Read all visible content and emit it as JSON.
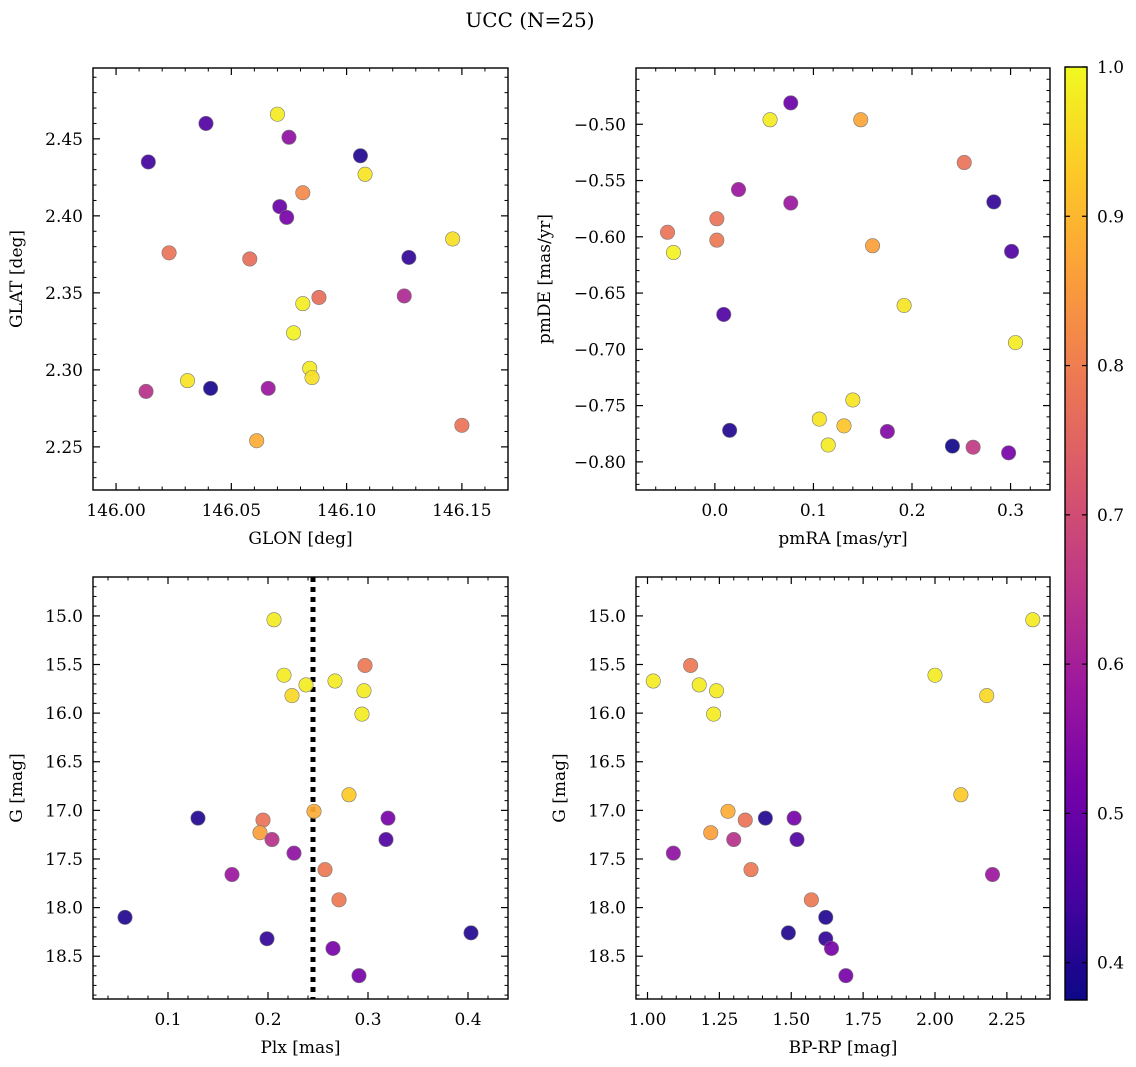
{
  "figure": {
    "title": "UCC (N=25)"
  },
  "colorbar": {
    "range": [
      0.375,
      1.0
    ],
    "ticks": [
      0.4,
      0.5,
      0.6,
      0.7,
      0.8,
      0.9,
      1.0
    ],
    "tick_labels": [
      "0.4",
      "0.5",
      "0.6",
      "0.7",
      "0.8",
      "0.9",
      "1.0"
    ],
    "colormap": "plasma",
    "colors": [
      "#0d0887",
      "#46039f",
      "#7201a8",
      "#9c179e",
      "#bd3786",
      "#d8576b",
      "#ed7953",
      "#fb9f3a",
      "#fdca26",
      "#f0f921"
    ]
  },
  "chart_data": [
    {
      "type": "scatter",
      "panel": "top-left",
      "xlabel": "GLON [deg]",
      "ylabel": "GLAT [deg]",
      "xlim": [
        145.99,
        146.17
      ],
      "ylim": [
        2.222,
        2.496
      ],
      "x_ticks": [
        146.0,
        146.05,
        146.1,
        146.15
      ],
      "x_tick_labels": [
        "146.00",
        "146.05",
        "146.10",
        "146.15"
      ],
      "y_ticks": [
        2.25,
        2.3,
        2.35,
        2.4,
        2.45
      ],
      "y_tick_labels": [
        "2.25",
        "2.30",
        "2.35",
        "2.40",
        "2.45"
      ],
      "invert_y": false,
      "points": [
        {
          "x": 146.07,
          "y": 2.466,
          "c": 0.98
        },
        {
          "x": 146.039,
          "y": 2.46,
          "c": 0.46
        },
        {
          "x": 146.075,
          "y": 2.451,
          "c": 0.56
        },
        {
          "x": 146.014,
          "y": 2.435,
          "c": 0.44
        },
        {
          "x": 146.106,
          "y": 2.439,
          "c": 0.4
        },
        {
          "x": 146.108,
          "y": 2.427,
          "c": 0.97
        },
        {
          "x": 146.081,
          "y": 2.415,
          "c": 0.82
        },
        {
          "x": 146.071,
          "y": 2.406,
          "c": 0.5
        },
        {
          "x": 146.074,
          "y": 2.399,
          "c": 0.52
        },
        {
          "x": 146.146,
          "y": 2.385,
          "c": 0.96
        },
        {
          "x": 146.023,
          "y": 2.376,
          "c": 0.78
        },
        {
          "x": 146.058,
          "y": 2.372,
          "c": 0.77
        },
        {
          "x": 146.127,
          "y": 2.373,
          "c": 0.42
        },
        {
          "x": 146.125,
          "y": 2.348,
          "c": 0.62
        },
        {
          "x": 146.088,
          "y": 2.347,
          "c": 0.77
        },
        {
          "x": 146.081,
          "y": 2.343,
          "c": 0.98
        },
        {
          "x": 146.077,
          "y": 2.324,
          "c": 0.99
        },
        {
          "x": 146.084,
          "y": 2.301,
          "c": 0.98
        },
        {
          "x": 146.085,
          "y": 2.295,
          "c": 0.96
        },
        {
          "x": 146.031,
          "y": 2.293,
          "c": 0.97
        },
        {
          "x": 146.041,
          "y": 2.288,
          "c": 0.39
        },
        {
          "x": 146.066,
          "y": 2.288,
          "c": 0.58
        },
        {
          "x": 146.013,
          "y": 2.286,
          "c": 0.64
        },
        {
          "x": 146.15,
          "y": 2.264,
          "c": 0.78
        },
        {
          "x": 146.061,
          "y": 2.254,
          "c": 0.88
        }
      ]
    },
    {
      "type": "scatter",
      "panel": "top-right",
      "xlabel": "pmRA [mas/yr]",
      "ylabel": "pmDE [mas/yr]",
      "xlim": [
        -0.08,
        0.34
      ],
      "ylim": [
        -0.825,
        -0.45
      ],
      "x_ticks": [
        0.0,
        0.1,
        0.2,
        0.3
      ],
      "x_tick_labels": [
        "0.0",
        "0.1",
        "0.2",
        "0.3"
      ],
      "y_ticks": [
        -0.8,
        -0.75,
        -0.7,
        -0.65,
        -0.6,
        -0.55,
        -0.5
      ],
      "y_tick_labels": [
        "−0.80",
        "−0.75",
        "−0.70",
        "−0.65",
        "−0.60",
        "−0.55",
        "−0.50"
      ],
      "invert_y": false,
      "points": [
        {
          "x": 0.077,
          "y": -0.481,
          "c": 0.5
        },
        {
          "x": 0.056,
          "y": -0.496,
          "c": 0.98
        },
        {
          "x": 0.148,
          "y": -0.496,
          "c": 0.87
        },
        {
          "x": 0.253,
          "y": -0.534,
          "c": 0.78
        },
        {
          "x": 0.024,
          "y": -0.558,
          "c": 0.58
        },
        {
          "x": 0.283,
          "y": -0.569,
          "c": 0.42
        },
        {
          "x": 0.077,
          "y": -0.57,
          "c": 0.58
        },
        {
          "x": 0.002,
          "y": -0.584,
          "c": 0.78
        },
        {
          "x": -0.048,
          "y": -0.596,
          "c": 0.78
        },
        {
          "x": 0.002,
          "y": -0.603,
          "c": 0.79
        },
        {
          "x": 0.16,
          "y": -0.608,
          "c": 0.86
        },
        {
          "x": -0.042,
          "y": -0.614,
          "c": 0.99
        },
        {
          "x": 0.301,
          "y": -0.613,
          "c": 0.46
        },
        {
          "x": 0.192,
          "y": -0.661,
          "c": 0.97
        },
        {
          "x": 0.009,
          "y": -0.669,
          "c": 0.46
        },
        {
          "x": 0.305,
          "y": -0.694,
          "c": 0.98
        },
        {
          "x": 0.14,
          "y": -0.745,
          "c": 0.97
        },
        {
          "x": 0.106,
          "y": -0.762,
          "c": 0.97
        },
        {
          "x": 0.131,
          "y": -0.768,
          "c": 0.92
        },
        {
          "x": 0.015,
          "y": -0.772,
          "c": 0.4
        },
        {
          "x": 0.175,
          "y": -0.773,
          "c": 0.54
        },
        {
          "x": 0.115,
          "y": -0.785,
          "c": 0.98
        },
        {
          "x": 0.241,
          "y": -0.786,
          "c": 0.38
        },
        {
          "x": 0.262,
          "y": -0.787,
          "c": 0.66
        },
        {
          "x": 0.298,
          "y": -0.792,
          "c": 0.52
        }
      ]
    },
    {
      "type": "scatter",
      "panel": "bottom-left",
      "xlabel": "Plx [mas]",
      "ylabel": "G [mag]",
      "xlim": [
        0.025,
        0.44
      ],
      "ylim": [
        14.6,
        18.94
      ],
      "x_ticks": [
        0.1,
        0.2,
        0.3,
        0.4
      ],
      "x_tick_labels": [
        "0.1",
        "0.2",
        "0.3",
        "0.4"
      ],
      "y_ticks": [
        15.0,
        15.5,
        16.0,
        16.5,
        17.0,
        17.5,
        18.0,
        18.5
      ],
      "y_tick_labels": [
        "15.0",
        "15.5",
        "16.0",
        "16.5",
        "17.0",
        "17.5",
        "18.0",
        "18.5"
      ],
      "invert_y": true,
      "vline": 0.245,
      "points": [
        {
          "x": 0.206,
          "y": 15.04,
          "c": 0.98
        },
        {
          "x": 0.297,
          "y": 15.51,
          "c": 0.79
        },
        {
          "x": 0.216,
          "y": 15.61,
          "c": 0.98
        },
        {
          "x": 0.267,
          "y": 15.67,
          "c": 0.98
        },
        {
          "x": 0.238,
          "y": 15.71,
          "c": 0.98
        },
        {
          "x": 0.296,
          "y": 15.77,
          "c": 0.98
        },
        {
          "x": 0.224,
          "y": 15.82,
          "c": 0.95
        },
        {
          "x": 0.294,
          "y": 16.01,
          "c": 0.98
        },
        {
          "x": 0.281,
          "y": 16.84,
          "c": 0.93
        },
        {
          "x": 0.246,
          "y": 17.01,
          "c": 0.88
        },
        {
          "x": 0.13,
          "y": 17.08,
          "c": 0.4
        },
        {
          "x": 0.32,
          "y": 17.08,
          "c": 0.52
        },
        {
          "x": 0.195,
          "y": 17.1,
          "c": 0.78
        },
        {
          "x": 0.192,
          "y": 17.23,
          "c": 0.86
        },
        {
          "x": 0.204,
          "y": 17.3,
          "c": 0.64
        },
        {
          "x": 0.318,
          "y": 17.3,
          "c": 0.46
        },
        {
          "x": 0.226,
          "y": 17.44,
          "c": 0.56
        },
        {
          "x": 0.257,
          "y": 17.61,
          "c": 0.79
        },
        {
          "x": 0.164,
          "y": 17.66,
          "c": 0.58
        },
        {
          "x": 0.271,
          "y": 17.92,
          "c": 0.79
        },
        {
          "x": 0.057,
          "y": 18.1,
          "c": 0.4
        },
        {
          "x": 0.403,
          "y": 18.26,
          "c": 0.4
        },
        {
          "x": 0.199,
          "y": 18.32,
          "c": 0.42
        },
        {
          "x": 0.265,
          "y": 18.42,
          "c": 0.52
        },
        {
          "x": 0.291,
          "y": 18.7,
          "c": 0.52
        }
      ]
    },
    {
      "type": "scatter",
      "panel": "bottom-right",
      "xlabel": "BP-RP [mag]",
      "ylabel": "G [mag]",
      "xlim": [
        0.96,
        2.4
      ],
      "ylim": [
        14.6,
        18.94
      ],
      "x_ticks": [
        1.0,
        1.25,
        1.5,
        1.75,
        2.0,
        2.25
      ],
      "x_tick_labels": [
        "1.00",
        "1.25",
        "1.50",
        "1.75",
        "2.00",
        "2.25"
      ],
      "y_ticks": [
        15.0,
        15.5,
        16.0,
        16.5,
        17.0,
        17.5,
        18.0,
        18.5
      ],
      "y_tick_labels": [
        "15.0",
        "15.5",
        "16.0",
        "16.5",
        "17.0",
        "17.5",
        "18.0",
        "18.5"
      ],
      "invert_y": true,
      "points": [
        {
          "x": 2.34,
          "y": 15.04,
          "c": 0.98
        },
        {
          "x": 1.15,
          "y": 15.51,
          "c": 0.79
        },
        {
          "x": 2.0,
          "y": 15.61,
          "c": 0.98
        },
        {
          "x": 1.02,
          "y": 15.67,
          "c": 0.98
        },
        {
          "x": 1.18,
          "y": 15.71,
          "c": 0.98
        },
        {
          "x": 1.24,
          "y": 15.77,
          "c": 0.98
        },
        {
          "x": 2.18,
          "y": 15.82,
          "c": 0.95
        },
        {
          "x": 1.23,
          "y": 16.01,
          "c": 0.98
        },
        {
          "x": 2.09,
          "y": 16.84,
          "c": 0.93
        },
        {
          "x": 1.28,
          "y": 17.01,
          "c": 0.88
        },
        {
          "x": 1.41,
          "y": 17.08,
          "c": 0.4
        },
        {
          "x": 1.51,
          "y": 17.08,
          "c": 0.52
        },
        {
          "x": 1.34,
          "y": 17.1,
          "c": 0.78
        },
        {
          "x": 1.22,
          "y": 17.23,
          "c": 0.86
        },
        {
          "x": 1.3,
          "y": 17.3,
          "c": 0.64
        },
        {
          "x": 1.52,
          "y": 17.3,
          "c": 0.46
        },
        {
          "x": 1.09,
          "y": 17.44,
          "c": 0.56
        },
        {
          "x": 1.36,
          "y": 17.61,
          "c": 0.79
        },
        {
          "x": 2.2,
          "y": 17.66,
          "c": 0.58
        },
        {
          "x": 1.57,
          "y": 17.92,
          "c": 0.79
        },
        {
          "x": 1.62,
          "y": 18.1,
          "c": 0.4
        },
        {
          "x": 1.49,
          "y": 18.26,
          "c": 0.4
        },
        {
          "x": 1.62,
          "y": 18.32,
          "c": 0.42
        },
        {
          "x": 1.64,
          "y": 18.42,
          "c": 0.52
        },
        {
          "x": 1.69,
          "y": 18.7,
          "c": 0.52
        }
      ]
    }
  ]
}
